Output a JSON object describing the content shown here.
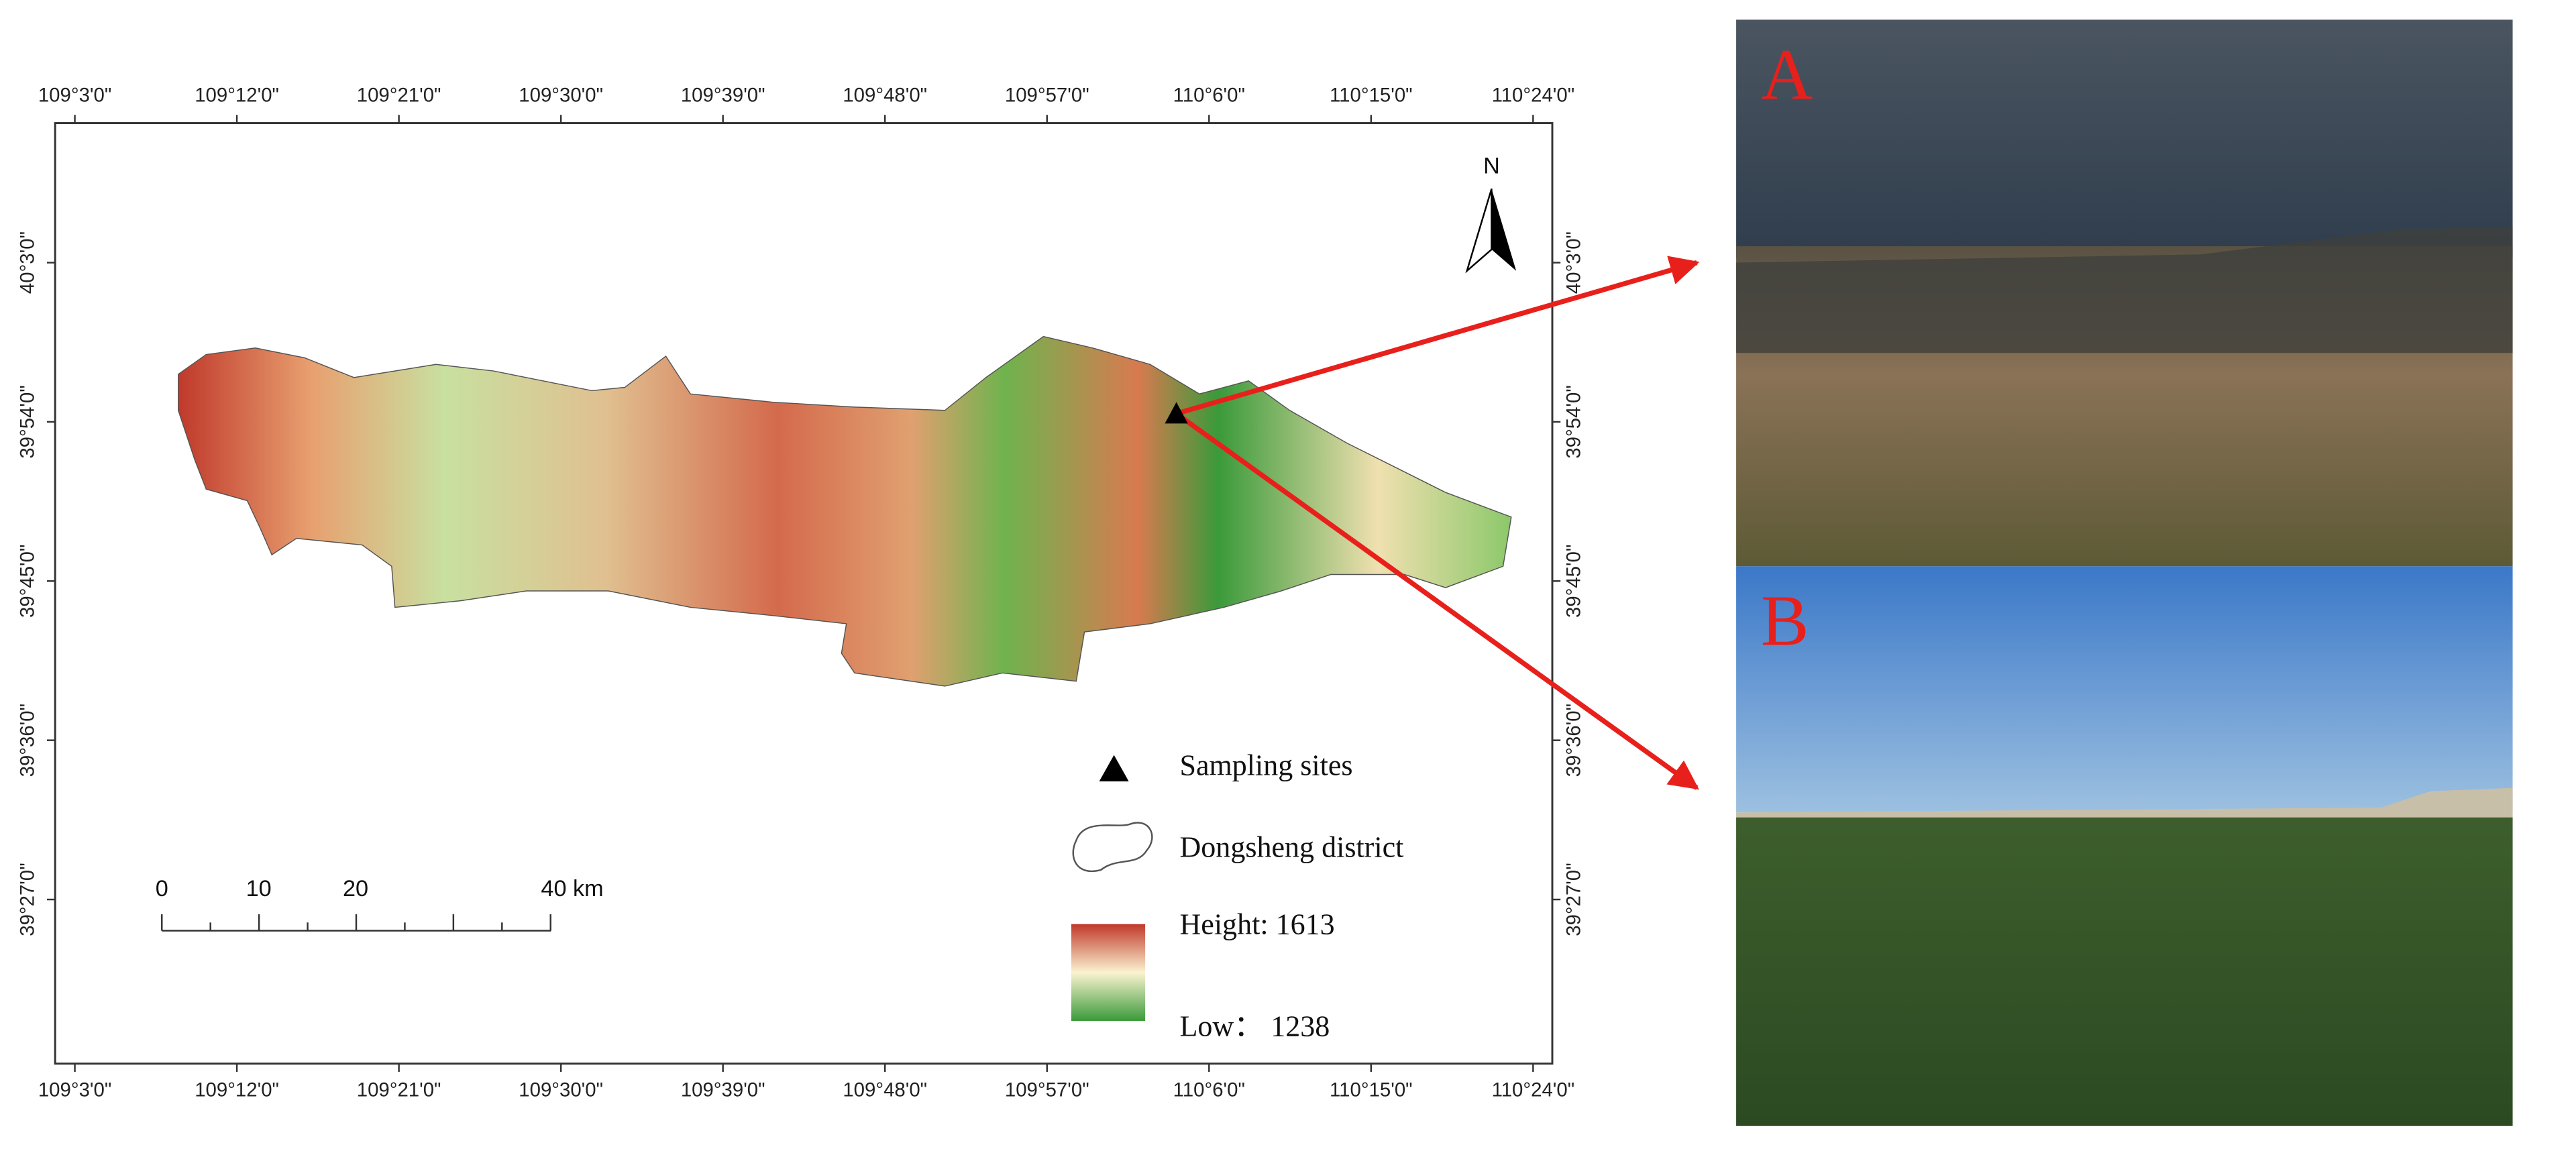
{
  "map": {
    "longitude_labels": [
      "109°3'0\"",
      "109°12'0\"",
      "109°21'0\"",
      "109°30'0\"",
      "109°39'0\"",
      "109°48'0\"",
      "109°57'0\"",
      "110°6'0\"",
      "110°15'0\"",
      "110°24'0\""
    ],
    "latitude_labels": [
      "40°3'0\"",
      "39°54'0\"",
      "39°45'0\"",
      "39°36'0\"",
      "39°27'0\""
    ],
    "north": "N",
    "legend": {
      "sites": "Sampling sites",
      "district": "Dongsheng district",
      "high": "Height: 1613",
      "low": "Low： 1238"
    },
    "scale_bar": [
      "0",
      "10",
      "20",
      "40 km"
    ]
  },
  "photos": [
    {
      "label": "A"
    },
    {
      "label": "B"
    }
  ]
}
